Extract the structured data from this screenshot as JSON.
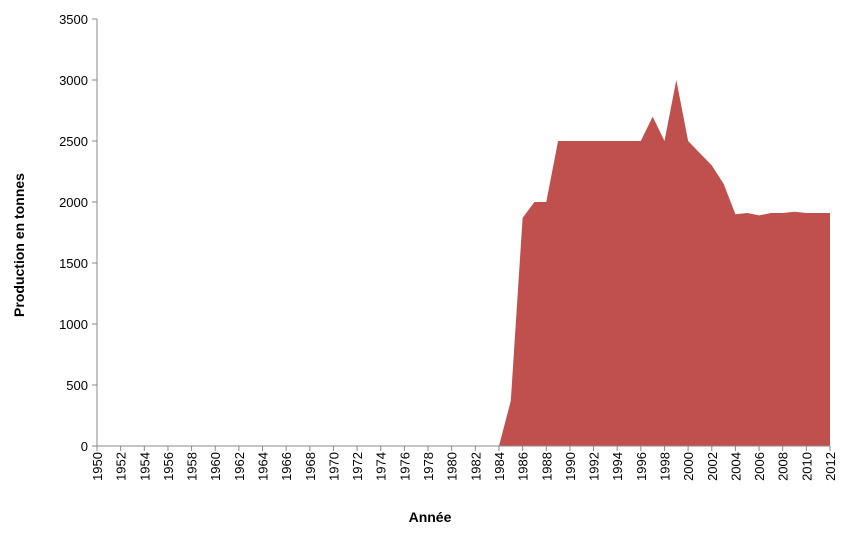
{
  "chart_data": {
    "type": "area",
    "x_label": "Année",
    "y_label": "Production en tonnes",
    "x": [
      1950,
      1951,
      1952,
      1953,
      1954,
      1955,
      1956,
      1957,
      1958,
      1959,
      1960,
      1961,
      1962,
      1963,
      1964,
      1965,
      1966,
      1967,
      1968,
      1969,
      1970,
      1971,
      1972,
      1973,
      1974,
      1975,
      1976,
      1977,
      1978,
      1979,
      1980,
      1981,
      1982,
      1983,
      1984,
      1985,
      1986,
      1987,
      1988,
      1989,
      1990,
      1991,
      1992,
      1993,
      1994,
      1995,
      1996,
      1997,
      1998,
      1999,
      2000,
      2001,
      2002,
      2003,
      2004,
      2005,
      2006,
      2007,
      2008,
      2009,
      2010,
      2011,
      2012
    ],
    "values": [
      0,
      0,
      0,
      0,
      0,
      0,
      0,
      0,
      0,
      0,
      0,
      0,
      0,
      0,
      0,
      0,
      0,
      0,
      0,
      0,
      0,
      0,
      0,
      0,
      0,
      0,
      0,
      0,
      0,
      0,
      0,
      0,
      0,
      0,
      0,
      370,
      1870,
      2000,
      2000,
      2500,
      2500,
      2500,
      2500,
      2500,
      2500,
      2500,
      2500,
      2700,
      2500,
      3000,
      2500,
      2400,
      2300,
      2150,
      1900,
      1910,
      1890,
      1910,
      1910,
      1920,
      1910,
      1910,
      1910
    ],
    "color": "#c0504d",
    "xlim": [
      1950,
      2012
    ],
    "xticks": [
      1950,
      1952,
      1954,
      1956,
      1958,
      1960,
      1962,
      1964,
      1966,
      1968,
      1970,
      1972,
      1974,
      1976,
      1978,
      1980,
      1982,
      1984,
      1986,
      1988,
      1990,
      1992,
      1994,
      1996,
      1998,
      2000,
      2002,
      2004,
      2006,
      2008,
      2010,
      2012
    ],
    "ylim": [
      0,
      3500
    ],
    "yticks": [
      0,
      500,
      1000,
      1500,
      2000,
      2500,
      3000,
      3500
    ]
  }
}
